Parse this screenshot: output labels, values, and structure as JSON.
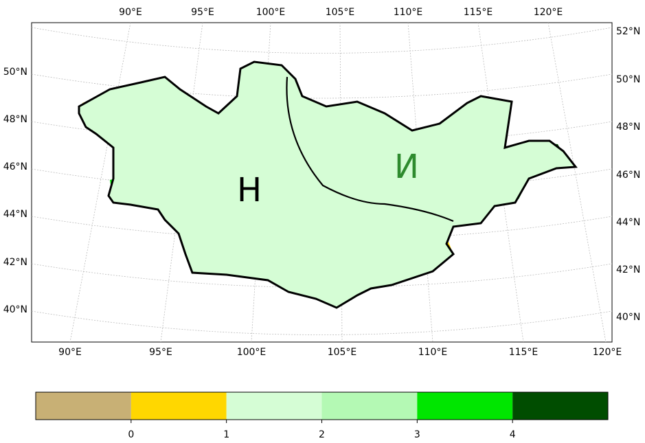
{
  "map": {
    "top_labels": [
      "90°E",
      "95°E",
      "100°E",
      "105°E",
      "110°E",
      "115°E",
      "120°E"
    ],
    "bottom_labels": [
      "90°E",
      "95°E",
      "100°E",
      "105°E",
      "110°E",
      "115°E",
      "120°E"
    ],
    "left_labels": [
      "50°N",
      "48°N",
      "46°N",
      "44°N",
      "42°N",
      "40°N"
    ],
    "right_labels": [
      "52°N",
      "50°N",
      "48°N",
      "46°N",
      "44°N",
      "42°N",
      "40°N"
    ],
    "region_labels": [
      "Н",
      "И"
    ],
    "colorbar": {
      "colors": [
        "#c8b075",
        "#ffd700",
        "#d5fdd5",
        "#b4f9b4",
        "#00e600",
        "#004d00"
      ],
      "ticks": [
        0,
        1,
        2,
        3,
        4
      ]
    }
  }
}
